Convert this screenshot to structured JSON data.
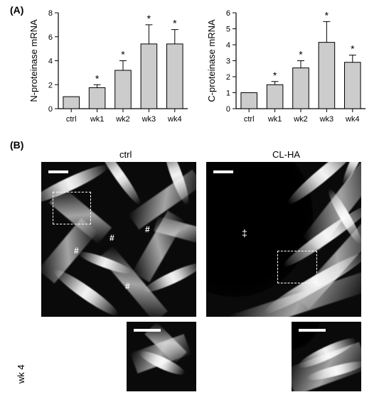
{
  "panels": {
    "A": "(A)",
    "B": "(B)"
  },
  "chartN": {
    "type": "bar",
    "ylabel": "N-proteinase mRNA",
    "categories": [
      "ctrl",
      "wk1",
      "wk2",
      "wk3",
      "wk4"
    ],
    "values": [
      1.0,
      1.75,
      3.2,
      5.4,
      5.4
    ],
    "errors": [
      0,
      0.25,
      0.8,
      1.6,
      1.2
    ],
    "sig": [
      false,
      true,
      true,
      true,
      true
    ],
    "ylim": [
      0,
      8
    ],
    "ytick_step": 2,
    "bar_fill": "#cccccc",
    "bar_stroke": "#000000",
    "err_stroke": "#000000",
    "text_color": "#000000",
    "label_fontsize": 13,
    "tick_fontsize": 11,
    "bar_width": 0.62
  },
  "chartC": {
    "type": "bar",
    "ylabel": "C-proteinase mRNA",
    "categories": [
      "ctrl",
      "wk1",
      "wk2",
      "wk3",
      "wk4"
    ],
    "values": [
      1.0,
      1.5,
      2.55,
      4.15,
      2.9
    ],
    "errors": [
      0,
      0.2,
      0.45,
      1.3,
      0.45
    ],
    "sig": [
      false,
      true,
      true,
      true,
      true
    ],
    "ylim": [
      0,
      6
    ],
    "ytick_step": 1,
    "bar_fill": "#cccccc",
    "bar_stroke": "#000000",
    "err_stroke": "#000000",
    "text_color": "#000000",
    "label_fontsize": 13,
    "tick_fontsize": 11,
    "bar_width": 0.62
  },
  "images": {
    "headers": {
      "left": "ctrl",
      "right": "CL-HA"
    },
    "side": "wk 4",
    "scale_color": "#ffffff",
    "dashed_color": "#ffffff",
    "hash": "#",
    "ddagger": "‡"
  }
}
